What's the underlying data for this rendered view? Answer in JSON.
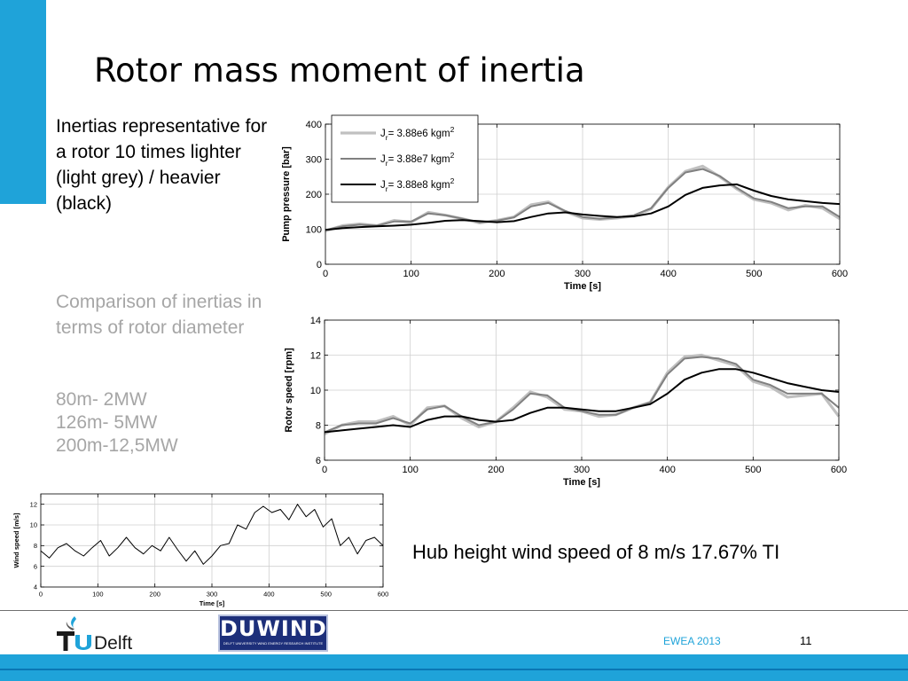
{
  "slide": {
    "title": "Rotor mass moment of inertia",
    "description": "Inertias representative for a rotor 10 times lighter (light grey) / heavier (black)",
    "subtitle": "Comparison of inertias in terms of rotor diameter",
    "sizes": [
      "80m- 2MW",
      "126m- 5MW",
      "200m-12,5MW"
    ],
    "wind_caption": "Hub height wind speed of 8 m/s  17.67% TI",
    "colors": {
      "accent": "#1fa3d9",
      "accent_dark": "#0a77b4",
      "light_series": "#c0c0c0",
      "mid_series": "#808080",
      "heavy_series": "#000000"
    }
  },
  "footer": {
    "conference": "EWEA 2013",
    "page_number": "11",
    "logo_tudelft": "TUDelft",
    "logo_duwind": "DUWIND",
    "logo_duwind_tagline": "DELFT UNIVERSITY WIND ENERGY RESEARCH INSTITUTE",
    "tudelft_flame_icon": "flame-icon"
  },
  "chart_data": [
    {
      "type": "line",
      "xlabel": "Time [s]",
      "ylabel": "Pump pressure [bar]",
      "xlim": [
        0,
        600
      ],
      "ylim": [
        0,
        400
      ],
      "xticks": [
        0,
        100,
        200,
        300,
        400,
        500,
        600
      ],
      "yticks": [
        0,
        100,
        200,
        300,
        400
      ],
      "grid": true,
      "legend_position": "top-left",
      "x": [
        0,
        20,
        40,
        60,
        80,
        100,
        120,
        140,
        160,
        180,
        200,
        220,
        240,
        260,
        280,
        300,
        320,
        340,
        360,
        380,
        400,
        420,
        440,
        460,
        480,
        500,
        520,
        540,
        560,
        580,
        600
      ],
      "series": [
        {
          "name": "J_r= 3.88e6 kgm^2",
          "legend_text": {
            "prefix": "J",
            "sub": "r",
            "middle": "= 3.88e6 kgm",
            "sup": "2"
          },
          "color": "#c0c0c0",
          "width": 3.2,
          "values": [
            95,
            110,
            115,
            110,
            125,
            120,
            148,
            140,
            130,
            118,
            125,
            135,
            170,
            178,
            150,
            132,
            128,
            132,
            138,
            158,
            220,
            265,
            280,
            250,
            215,
            185,
            175,
            155,
            168,
            160,
            130
          ]
        },
        {
          "name": "J_r= 3.88e7 kgm^2",
          "legend_text": {
            "prefix": "J",
            "sub": "r",
            "middle": "= 3.88e7 kgm",
            "sup": "2"
          },
          "color": "#808080",
          "width": 2,
          "values": [
            98,
            108,
            113,
            110,
            122,
            122,
            145,
            140,
            130,
            120,
            124,
            134,
            165,
            175,
            152,
            135,
            130,
            134,
            140,
            160,
            218,
            262,
            272,
            252,
            218,
            188,
            178,
            160,
            165,
            165,
            135
          ]
        },
        {
          "name": "J_r= 3.88e8 kgm^2",
          "legend_text": {
            "prefix": "J",
            "sub": "r",
            "middle": "= 3.88e8 kgm",
            "sup": "2"
          },
          "color": "#000000",
          "width": 2,
          "values": [
            98,
            103,
            106,
            108,
            110,
            113,
            118,
            124,
            126,
            123,
            120,
            123,
            135,
            145,
            148,
            142,
            138,
            135,
            137,
            145,
            165,
            198,
            218,
            225,
            228,
            210,
            195,
            185,
            180,
            175,
            172
          ]
        }
      ]
    },
    {
      "type": "line",
      "xlabel": "Time [s]",
      "ylabel": "Rotor speed [rpm]",
      "xlim": [
        0,
        600
      ],
      "ylim": [
        6,
        14
      ],
      "xticks": [
        0,
        100,
        200,
        300,
        400,
        500,
        600
      ],
      "yticks": [
        6,
        8,
        10,
        12,
        14
      ],
      "grid": true,
      "x": [
        0,
        20,
        40,
        60,
        80,
        100,
        120,
        140,
        160,
        180,
        200,
        220,
        240,
        260,
        280,
        300,
        320,
        340,
        360,
        380,
        400,
        420,
        440,
        460,
        480,
        500,
        520,
        540,
        560,
        580,
        600
      ],
      "series": [
        {
          "color": "#c0c0c0",
          "width": 3.2,
          "values": [
            7.5,
            8.0,
            8.2,
            8.2,
            8.5,
            8.0,
            9.0,
            9.1,
            8.4,
            7.9,
            8.2,
            9.0,
            9.9,
            9.6,
            8.9,
            8.8,
            8.5,
            8.6,
            9.0,
            9.3,
            11.0,
            11.9,
            12.0,
            11.7,
            11.4,
            10.5,
            10.2,
            9.6,
            9.7,
            9.8,
            8.5
          ]
        },
        {
          "color": "#808080",
          "width": 2,
          "values": [
            7.6,
            8.0,
            8.1,
            8.1,
            8.4,
            8.1,
            8.9,
            9.1,
            8.5,
            8.0,
            8.2,
            8.9,
            9.8,
            9.7,
            9.0,
            8.8,
            8.6,
            8.6,
            9.0,
            9.3,
            10.9,
            11.8,
            11.9,
            11.8,
            11.5,
            10.6,
            10.3,
            9.8,
            9.8,
            9.8,
            9.0
          ]
        },
        {
          "color": "#000000",
          "width": 2,
          "values": [
            7.6,
            7.7,
            7.8,
            7.9,
            8.0,
            7.9,
            8.3,
            8.5,
            8.5,
            8.3,
            8.2,
            8.3,
            8.7,
            9.0,
            9.0,
            8.9,
            8.8,
            8.8,
            9.0,
            9.2,
            9.8,
            10.6,
            11.0,
            11.2,
            11.2,
            11.0,
            10.7,
            10.4,
            10.2,
            10.0,
            9.9
          ]
        }
      ]
    },
    {
      "type": "line",
      "xlabel": "Time [s]",
      "ylabel": "Wind speed [m/s]",
      "xlim": [
        0,
        600
      ],
      "ylim": [
        4,
        13
      ],
      "xticks": [
        0,
        100,
        200,
        300,
        400,
        500,
        600
      ],
      "yticks": [
        4,
        6,
        8,
        10,
        12
      ],
      "grid": true,
      "x": [
        0,
        15,
        30,
        45,
        60,
        75,
        90,
        105,
        120,
        135,
        150,
        165,
        180,
        195,
        210,
        225,
        240,
        255,
        270,
        285,
        300,
        315,
        330,
        345,
        360,
        375,
        390,
        405,
        420,
        435,
        450,
        465,
        480,
        495,
        510,
        525,
        540,
        555,
        570,
        585,
        600
      ],
      "series": [
        {
          "color": "#000000",
          "width": 1,
          "values": [
            7.5,
            6.8,
            7.8,
            8.2,
            7.5,
            7.0,
            7.8,
            8.5,
            7.0,
            7.8,
            8.8,
            7.8,
            7.2,
            8.0,
            7.5,
            8.8,
            7.6,
            6.5,
            7.5,
            6.2,
            7.0,
            8.0,
            8.2,
            10.0,
            9.6,
            11.2,
            11.8,
            11.2,
            11.5,
            10.5,
            12.0,
            10.8,
            11.5,
            9.8,
            10.6,
            8.0,
            8.8,
            7.2,
            8.5,
            8.8,
            8.0
          ]
        }
      ]
    }
  ]
}
